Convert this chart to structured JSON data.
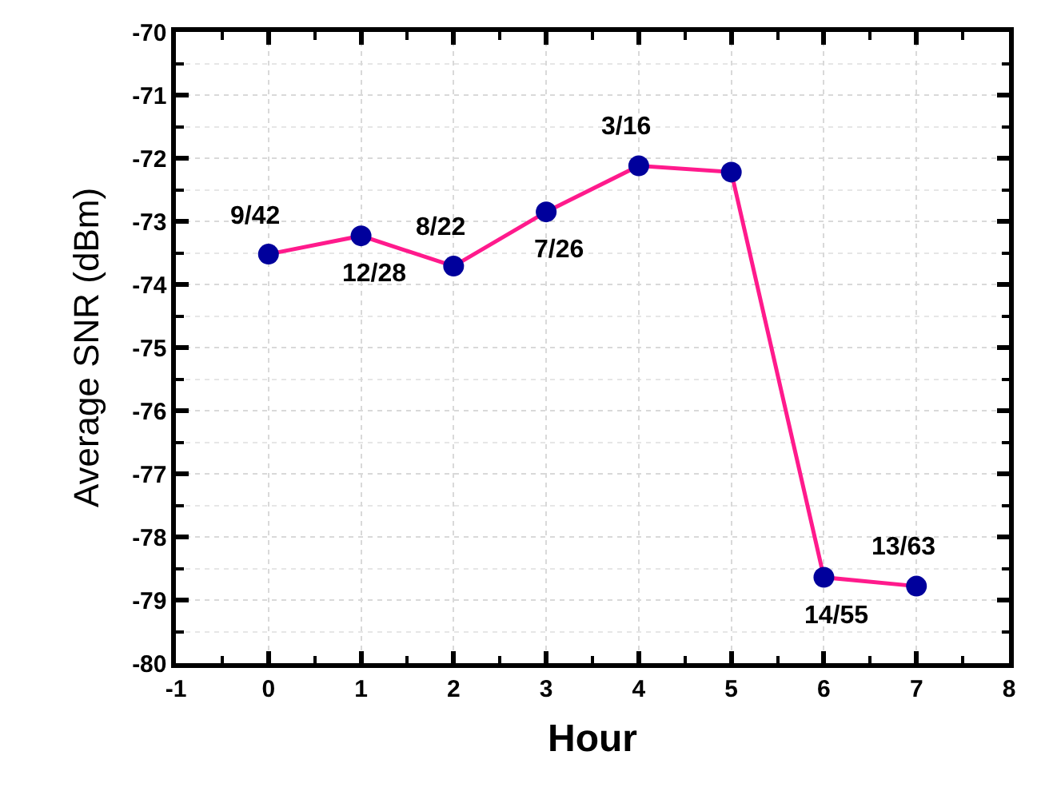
{
  "chart_data": {
    "type": "line",
    "xlabel": "Hour",
    "ylabel": "Average SNR (dBm)",
    "x": [
      0,
      1,
      2,
      3,
      4,
      5,
      6,
      7
    ],
    "series": [
      {
        "color": "#ff1a8c",
        "colors": [
          "#00009c",
          "#00009c",
          "#00009c",
          "#00009c",
          "#00009c",
          "#00009c",
          "#00009c",
          "#00009c"
        ],
        "values": [
          -73.52,
          -73.23,
          -73.71,
          -72.85,
          -72.12,
          -72.22,
          -78.64,
          -78.78
        ]
      }
    ],
    "marker": "circle",
    "xlim": [
      -1,
      8
    ],
    "xticks": [
      -1,
      0,
      1,
      2,
      3,
      4,
      5,
      6,
      7,
      8
    ],
    "ylim": [
      -80,
      -70
    ],
    "yticks": [
      -80,
      -79,
      -78,
      -77,
      -76,
      -75,
      -74,
      -73,
      -72,
      -71,
      -70
    ],
    "grid": true,
    "annotations": [
      {
        "text": "9/42",
        "x": 0,
        "y": -73.52
      },
      {
        "text": "12/28",
        "x": 1,
        "y": -73.23
      },
      {
        "text": "8/22",
        "x": 2,
        "y": -73.71
      },
      {
        "text": "7/26",
        "x": 3,
        "y": -72.85
      },
      {
        "text": "3/16",
        "x": 4,
        "y": -72.12
      },
      {
        "text": "14/55",
        "x": 6,
        "y": -78.64
      },
      {
        "text": "13/63",
        "x": 7,
        "y": -78.78
      }
    ]
  }
}
